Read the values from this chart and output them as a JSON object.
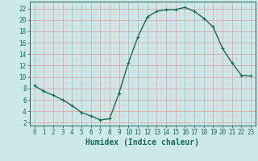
{
  "x": [
    0,
    1,
    2,
    3,
    4,
    5,
    6,
    7,
    8,
    9,
    10,
    11,
    12,
    13,
    14,
    15,
    16,
    17,
    18,
    19,
    20,
    21,
    22,
    23
  ],
  "y": [
    8.5,
    7.5,
    6.8,
    6.0,
    5.0,
    3.8,
    3.2,
    2.5,
    2.7,
    7.2,
    12.5,
    17.0,
    20.5,
    21.5,
    21.8,
    21.8,
    22.2,
    21.5,
    20.3,
    18.8,
    15.0,
    12.5,
    10.3,
    10.2
  ],
  "line_color": "#1a6b55",
  "marker": "+",
  "markersize": 3.5,
  "bg_color": "#cce8e8",
  "grid_major_color": "#d8a0a0",
  "grid_minor_color": "#e8c8c8",
  "xlabel": "Humidex (Indice chaleur)",
  "xlabel_fontsize": 7,
  "ylabel_ticks": [
    2,
    4,
    6,
    8,
    10,
    12,
    14,
    16,
    18,
    20,
    22
  ],
  "xlim": [
    -0.5,
    23.5
  ],
  "ylim": [
    1.5,
    23.2
  ],
  "xticks": [
    0,
    1,
    2,
    3,
    4,
    5,
    6,
    7,
    8,
    9,
    10,
    11,
    12,
    13,
    14,
    15,
    16,
    17,
    18,
    19,
    20,
    21,
    22,
    23
  ],
  "tick_fontsize": 5.5,
  "linewidth": 1.0
}
